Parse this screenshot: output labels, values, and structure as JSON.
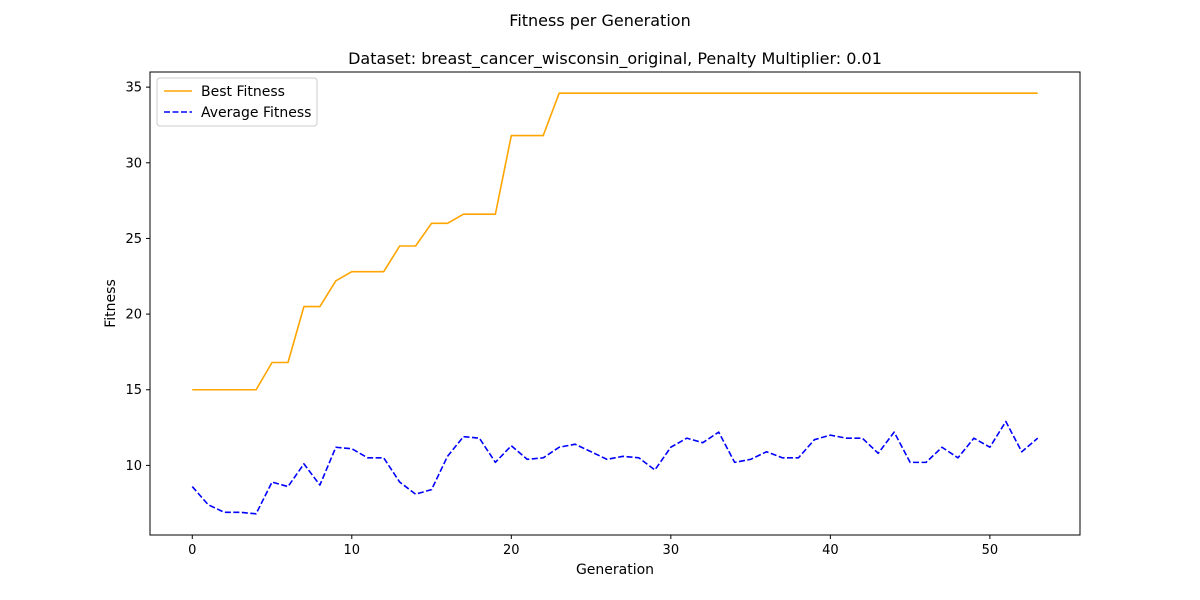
{
  "chart_data": {
    "type": "line",
    "suptitle": "Fitness per Generation",
    "title": "Dataset: breast_cancer_wisconsin_original, Penalty Multiplier: 0.01",
    "xlabel": "Generation",
    "ylabel": "Fitness",
    "xlim": [
      -2.65,
      55.65
    ],
    "ylim": [
      5.4,
      36.0
    ],
    "xticks": [
      0,
      10,
      20,
      30,
      40,
      50
    ],
    "yticks": [
      10,
      15,
      20,
      25,
      30,
      35
    ],
    "grid": false,
    "legend_position": "upper-left",
    "x": [
      0,
      1,
      2,
      3,
      4,
      5,
      6,
      7,
      8,
      9,
      10,
      11,
      12,
      13,
      14,
      15,
      16,
      17,
      18,
      19,
      20,
      21,
      22,
      23,
      24,
      25,
      26,
      27,
      28,
      29,
      30,
      31,
      32,
      33,
      34,
      35,
      36,
      37,
      38,
      39,
      40,
      41,
      42,
      43,
      44,
      45,
      46,
      47,
      48,
      49,
      50,
      51,
      52,
      53
    ],
    "series": [
      {
        "name": "Best Fitness",
        "color": "#ffa500",
        "dash": "solid",
        "values": [
          15.0,
          15.0,
          15.0,
          15.0,
          15.0,
          16.8,
          16.8,
          20.5,
          20.5,
          22.2,
          22.8,
          22.8,
          22.8,
          24.5,
          24.5,
          26.0,
          26.0,
          26.6,
          26.6,
          26.6,
          31.8,
          31.8,
          31.8,
          34.6,
          34.6,
          34.6,
          34.6,
          34.6,
          34.6,
          34.6,
          34.6,
          34.6,
          34.6,
          34.6,
          34.6,
          34.6,
          34.6,
          34.6,
          34.6,
          34.6,
          34.6,
          34.6,
          34.6,
          34.6,
          34.6,
          34.6,
          34.6,
          34.6,
          34.6,
          34.6,
          34.6,
          34.6,
          34.6,
          34.6
        ]
      },
      {
        "name": "Average Fitness",
        "color": "#0000ff",
        "dash": "dashed",
        "values": [
          8.6,
          7.4,
          6.9,
          6.9,
          6.8,
          8.9,
          8.6,
          10.1,
          8.7,
          11.2,
          11.1,
          10.5,
          10.5,
          8.9,
          8.1,
          8.4,
          10.6,
          11.9,
          11.8,
          10.2,
          11.3,
          10.4,
          10.5,
          11.2,
          11.4,
          10.9,
          10.4,
          10.6,
          10.5,
          9.7,
          11.2,
          11.8,
          11.5,
          12.2,
          10.2,
          10.4,
          10.9,
          10.5,
          10.5,
          11.7,
          12.0,
          11.8,
          11.8,
          10.8,
          12.2,
          10.2,
          10.2,
          11.2,
          10.5,
          11.8,
          11.2,
          12.9,
          10.9,
          11.8
        ]
      }
    ]
  }
}
